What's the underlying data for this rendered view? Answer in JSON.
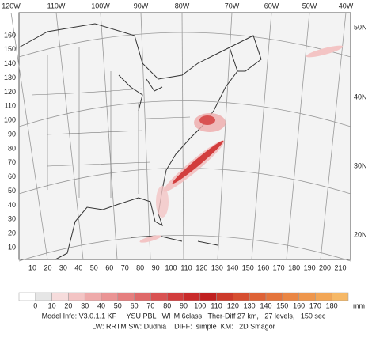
{
  "top_labels": [
    "120W",
    "110W",
    "100W",
    "90W",
    "80W",
    "70W",
    "60W",
    "50W",
    "40W"
  ],
  "right_labels": [
    "50N",
    "40N",
    "30N",
    "20N"
  ],
  "y_axis_labels": [
    160,
    150,
    140,
    130,
    120,
    110,
    100,
    90,
    80,
    70,
    60,
    50,
    40,
    30,
    20,
    10
  ],
  "x_axis_labels": [
    10,
    20,
    30,
    40,
    50,
    60,
    70,
    80,
    90,
    100,
    110,
    120,
    130,
    140,
    150,
    160,
    170,
    180,
    190,
    200,
    210
  ],
  "colorbar": {
    "labels": [
      0,
      10,
      20,
      30,
      40,
      50,
      60,
      70,
      80,
      90,
      100,
      110,
      120,
      130,
      140,
      150,
      160,
      170,
      180
    ],
    "unit": "mm",
    "colors": [
      "#ffffff",
      "#e6e6e6",
      "#f6dcdc",
      "#f3c4c4",
      "#eeaaaa",
      "#ea9494",
      "#e57e7e",
      "#df6868",
      "#d95252",
      "#d23d3d",
      "#c92a2a",
      "#c02020",
      "#cc3a2a",
      "#d64e30",
      "#de6236",
      "#e4743c",
      "#ea8644",
      "#ee964c",
      "#f2a656",
      "#f6b866"
    ]
  },
  "model_info": [
    "Model Info: V3.0.1.1 KF     YSU PBL   WHM 6class   Ther-Diff 27 km,   27 levels,   150 sec",
    "LW: RRTM SW: Dudhia    DIFF:  simple  KM:   2D Smagor"
  ]
}
